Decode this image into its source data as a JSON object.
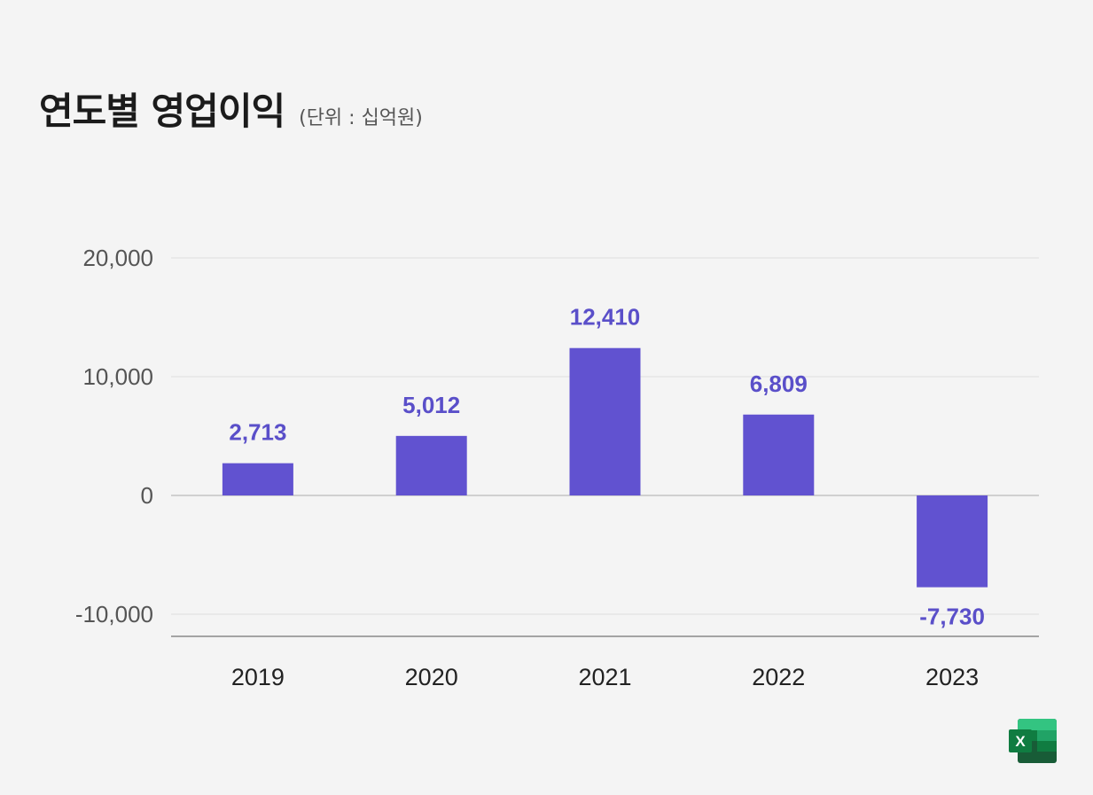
{
  "header": {
    "title": "연도별 영업이익",
    "unit": "(단위 : 십억원)"
  },
  "colors": {
    "background": "#f4f4f4",
    "bar": "#6152d0",
    "data_label": "#5a4fc9",
    "tick_label": "#555555",
    "category_label": "#222222",
    "grid": "#e2e2e2",
    "zero_line": "#c4c4c4",
    "axis_line": "#8a8a8a"
  },
  "chart_data": {
    "type": "bar",
    "categories": [
      "2019",
      "2020",
      "2021",
      "2022",
      "2023"
    ],
    "values": [
      2713,
      5012,
      12410,
      6809,
      -7730
    ],
    "value_labels": [
      "2,713",
      "5,012",
      "12,410",
      "6,809",
      "-7,730"
    ],
    "title": "연도별 영업이익",
    "subtitle": "(단위 : 십억원)",
    "xlabel": "",
    "ylabel": "",
    "ylim": [
      -12000,
      20000
    ],
    "yticks": [
      20000,
      10000,
      0,
      -10000
    ],
    "ytick_labels": [
      "20,000",
      "10,000",
      "0",
      "-10,000"
    ],
    "grid": true,
    "legend": "none"
  },
  "footer": {
    "icon": "excel-icon",
    "icon_letter": "X"
  }
}
